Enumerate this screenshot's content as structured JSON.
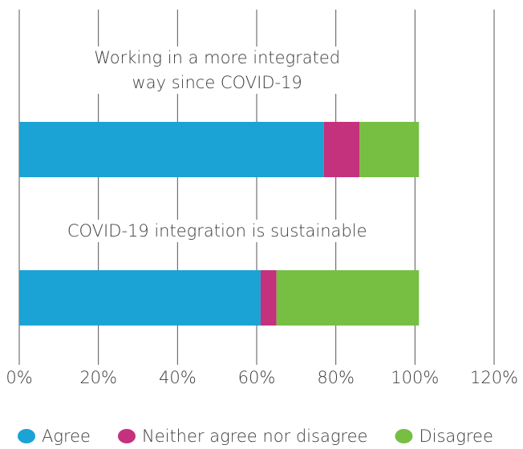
{
  "chart_data": {
    "type": "stacked-bar-horizontal",
    "categories": [
      "Working in a more integrated way since COVID-19",
      "COVID-19 integration is sustainable"
    ],
    "series": [
      {
        "name": "Agree",
        "color": "#1aa3d4",
        "values": [
          77,
          61
        ]
      },
      {
        "name": "Neither agree nor disagree",
        "color": "#c4317c",
        "values": [
          9,
          4
        ]
      },
      {
        "name": "Disagree",
        "color": "#76bf43",
        "values": [
          15,
          36
        ]
      }
    ],
    "xlim": [
      0,
      120
    ],
    "xticks": [
      {
        "value": 0,
        "label": "0%"
      },
      {
        "value": 20,
        "label": "20%"
      },
      {
        "value": 40,
        "label": "40%"
      },
      {
        "value": 60,
        "label": "60%"
      },
      {
        "value": 80,
        "label": "80%"
      },
      {
        "value": 100,
        "label": "100%"
      },
      {
        "value": 120,
        "label": "120%"
      }
    ],
    "grid": true,
    "legend": "bottom"
  }
}
